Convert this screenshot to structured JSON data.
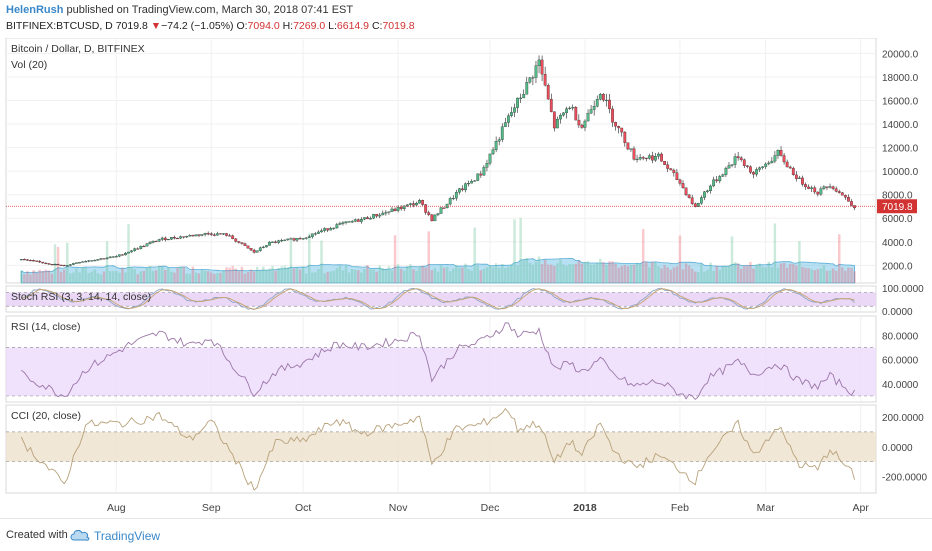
{
  "header": {
    "user": "HelenRush",
    "published": "published on TradingView.com, March 30, 2018 07:41 EST",
    "symbol": "BITFINEX:BTCUSD, D",
    "last": "7019.8",
    "arrow": "▼",
    "change": "−74.2 (−1.05%)",
    "o_label": "O:",
    "o_value": "7094.0",
    "h_label": "H:",
    "h_value": "7269.0",
    "l_label": "L:",
    "l_value": "6614.9",
    "c_label": "C:",
    "c_value": "7019.8"
  },
  "footer": {
    "created": "Created with",
    "brand": "TradingView",
    "logo_icon": "tradingview-cloud-icon"
  },
  "colors": {
    "up": "#53b987",
    "down": "#eb4d5c",
    "volume": "#7cc6e8",
    "stoch_band": "#e6d1f5",
    "rsi_band": "#eddcfb",
    "cci_band": "#efe3cf",
    "oscillator_line": "#a08aa8",
    "price_line": "#d23232"
  },
  "chart_data": [
    {
      "type": "candlestick",
      "title": "Bitcoin / Dollar, D, BITFINEX",
      "ylim": [
        500,
        20800
      ],
      "y_ticks": [
        "20000.0",
        "18000.0",
        "16000.0",
        "14000.0",
        "12000.0",
        "10000.0",
        "8000.0",
        "6000.0",
        "4000.0",
        "2000.0"
      ],
      "last_price_label": "7019.8",
      "x_ticks": [
        "Aug",
        "Sep",
        "Oct",
        "Nov",
        "Dec",
        "2018",
        "Feb",
        "Mar",
        "Apr"
      ],
      "close_anchors": [
        [
          "2017-07-01",
          2500
        ],
        [
          "2017-07-15",
          1950
        ],
        [
          "2017-07-20",
          2300
        ],
        [
          "2017-08-01",
          2750
        ],
        [
          "2017-08-15",
          4200
        ],
        [
          "2017-08-31",
          4700
        ],
        [
          "2017-09-06",
          4600
        ],
        [
          "2017-09-15",
          3100
        ],
        [
          "2017-09-20",
          3900
        ],
        [
          "2017-10-01",
          4350
        ],
        [
          "2017-10-12",
          5400
        ],
        [
          "2017-10-20",
          5900
        ],
        [
          "2017-11-01",
          6800
        ],
        [
          "2017-11-08",
          7400
        ],
        [
          "2017-11-12",
          5900
        ],
        [
          "2017-11-20",
          8100
        ],
        [
          "2017-11-28",
          9800
        ],
        [
          "2017-12-07",
          14500
        ],
        [
          "2017-12-12",
          16800
        ],
        [
          "2017-12-17",
          19300
        ],
        [
          "2017-12-22",
          13800
        ],
        [
          "2017-12-27",
          15600
        ],
        [
          "2017-12-31",
          13800
        ],
        [
          "2018-01-06",
          16900
        ],
        [
          "2018-01-10",
          14500
        ],
        [
          "2018-01-17",
          11200
        ],
        [
          "2018-01-25",
          11200
        ],
        [
          "2018-02-01",
          9000
        ],
        [
          "2018-02-06",
          6900
        ],
        [
          "2018-02-09",
          8200
        ],
        [
          "2018-02-20",
          11300
        ],
        [
          "2018-02-25",
          9700
        ],
        [
          "2018-03-05",
          11500
        ],
        [
          "2018-03-12",
          9200
        ],
        [
          "2018-03-18",
          8200
        ],
        [
          "2018-03-22",
          8900
        ],
        [
          "2018-03-30",
          7019.8
        ]
      ]
    },
    {
      "type": "bar",
      "title": "Vol (20)",
      "series": [
        {
          "values_note": "daily volume"
        }
      ]
    },
    {
      "type": "line",
      "title": "Stoch RSI (3, 3, 14, 14, close)",
      "ylim": [
        -5,
        108
      ],
      "y_ticks": [
        "100.0000",
        "0.0000"
      ],
      "band": [
        20,
        80
      ]
    },
    {
      "type": "line",
      "title": "RSI (14, close)",
      "ylim": [
        25,
        96
      ],
      "y_ticks": [
        "80.0000",
        "60.0000",
        "40.0000"
      ],
      "band": [
        30,
        70
      ],
      "anchors": [
        [
          "2017-07-01",
          48
        ],
        [
          "2017-07-15",
          30
        ],
        [
          "2017-07-22",
          52
        ],
        [
          "2017-08-05",
          72
        ],
        [
          "2017-08-15",
          82
        ],
        [
          "2017-08-25",
          72
        ],
        [
          "2017-09-01",
          78
        ],
        [
          "2017-09-15",
          33
        ],
        [
          "2017-09-22",
          50
        ],
        [
          "2017-10-01",
          58
        ],
        [
          "2017-10-12",
          73
        ],
        [
          "2017-10-20",
          70
        ],
        [
          "2017-11-01",
          76
        ],
        [
          "2017-11-08",
          82
        ],
        [
          "2017-11-12",
          44
        ],
        [
          "2017-11-20",
          68
        ],
        [
          "2017-11-28",
          75
        ],
        [
          "2017-12-07",
          90
        ],
        [
          "2017-12-10",
          80
        ],
        [
          "2017-12-17",
          84
        ],
        [
          "2017-12-22",
          52
        ],
        [
          "2017-12-27",
          57
        ],
        [
          "2017-12-31",
          50
        ],
        [
          "2018-01-06",
          60
        ],
        [
          "2018-01-10",
          48
        ],
        [
          "2018-01-17",
          38
        ],
        [
          "2018-01-25",
          42
        ],
        [
          "2018-02-01",
          32
        ],
        [
          "2018-02-06",
          28
        ],
        [
          "2018-02-10",
          44
        ],
        [
          "2018-02-20",
          58
        ],
        [
          "2018-02-25",
          48
        ],
        [
          "2018-03-05",
          57
        ],
        [
          "2018-03-12",
          42
        ],
        [
          "2018-03-18",
          38
        ],
        [
          "2018-03-22",
          46
        ],
        [
          "2018-03-30",
          32
        ]
      ]
    },
    {
      "type": "line",
      "title": "CCI (20, close)",
      "ylim": [
        -310,
        280
      ],
      "y_ticks": [
        "200.0000",
        "0.0000",
        "-200.0000"
      ],
      "band": [
        -100,
        100
      ],
      "anchors": [
        [
          "2017-07-01",
          40
        ],
        [
          "2017-07-15",
          -250
        ],
        [
          "2017-07-22",
          150
        ],
        [
          "2017-08-05",
          160
        ],
        [
          "2017-08-15",
          210
        ],
        [
          "2017-08-25",
          50
        ],
        [
          "2017-09-01",
          170
        ],
        [
          "2017-09-15",
          -290
        ],
        [
          "2017-09-22",
          30
        ],
        [
          "2017-10-01",
          40
        ],
        [
          "2017-10-12",
          180
        ],
        [
          "2017-10-20",
          90
        ],
        [
          "2017-11-01",
          150
        ],
        [
          "2017-11-08",
          200
        ],
        [
          "2017-11-12",
          -120
        ],
        [
          "2017-11-20",
          120
        ],
        [
          "2017-11-28",
          150
        ],
        [
          "2017-12-07",
          250
        ],
        [
          "2017-12-10",
          120
        ],
        [
          "2017-12-17",
          160
        ],
        [
          "2017-12-22",
          -110
        ],
        [
          "2017-12-27",
          40
        ],
        [
          "2017-12-31",
          -60
        ],
        [
          "2018-01-06",
          160
        ],
        [
          "2018-01-10",
          -20
        ],
        [
          "2018-01-17",
          -140
        ],
        [
          "2018-01-25",
          -60
        ],
        [
          "2018-02-01",
          -150
        ],
        [
          "2018-02-06",
          -230
        ],
        [
          "2018-02-10",
          -60
        ],
        [
          "2018-02-20",
          150
        ],
        [
          "2018-02-25",
          -60
        ],
        [
          "2018-03-05",
          140
        ],
        [
          "2018-03-12",
          -120
        ],
        [
          "2018-03-18",
          -150
        ],
        [
          "2018-03-22",
          -10
        ],
        [
          "2018-03-30",
          -200
        ]
      ]
    }
  ]
}
